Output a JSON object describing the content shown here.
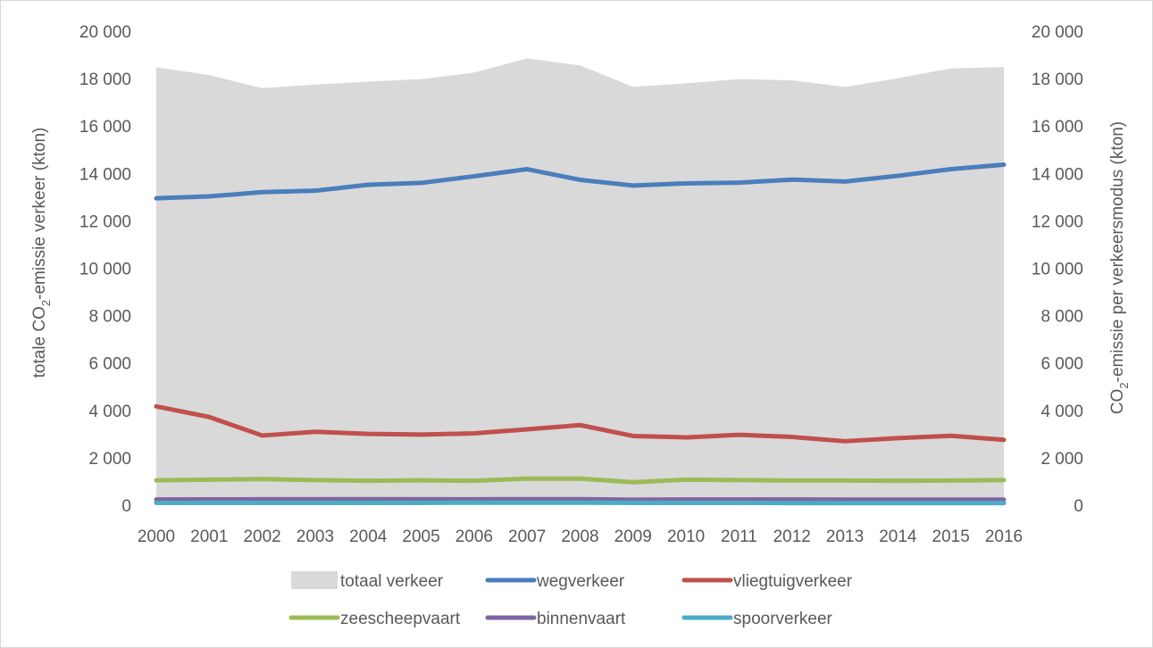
{
  "chart_data": {
    "type": "line",
    "categories": [
      "2000",
      "2001",
      "2002",
      "2003",
      "2004",
      "2005",
      "2006",
      "2007",
      "2008",
      "2009",
      "2010",
      "2011",
      "2012",
      "2013",
      "2014",
      "2015",
      "2016"
    ],
    "ylim": [
      0,
      20000
    ],
    "yticks": [
      0,
      2000,
      4000,
      6000,
      8000,
      10000,
      12000,
      14000,
      16000,
      18000,
      20000
    ],
    "ytick_labels": [
      "0",
      "2 000",
      "4 000",
      "6 000",
      "8 000",
      "10 000",
      "12 000",
      "14 000",
      "16 000",
      "18 000",
      "20 000"
    ],
    "ylabel_left": {
      "pre": "totale CO",
      "sub": "2",
      "post": "-emissie verkeer (kton)"
    },
    "ylabel_right": {
      "pre": "CO",
      "sub": "2",
      "post": "-emissie per verkeersmodus (kton)"
    },
    "grid": false,
    "legend_position": "bottom",
    "series": [
      {
        "name": "totaal verkeer",
        "kind": "area",
        "axis": "left",
        "color": "#d9d9d9",
        "values": [
          18480,
          18150,
          17600,
          17750,
          17870,
          17980,
          18260,
          18850,
          18560,
          17650,
          17800,
          17980,
          17930,
          17650,
          18020,
          18430,
          18490
        ]
      },
      {
        "name": "wegverkeer",
        "kind": "line",
        "axis": "right",
        "color": "#4a7ebb",
        "values": [
          12950,
          13030,
          13210,
          13270,
          13520,
          13600,
          13880,
          14180,
          13730,
          13490,
          13580,
          13610,
          13740,
          13660,
          13900,
          14180,
          14370
        ]
      },
      {
        "name": "vliegtuigverkeer",
        "kind": "line",
        "axis": "right",
        "color": "#c0504d",
        "values": [
          4170,
          3720,
          2940,
          3100,
          3010,
          2980,
          3030,
          3200,
          3380,
          2920,
          2860,
          2970,
          2880,
          2700,
          2830,
          2930,
          2760
        ]
      },
      {
        "name": "zeescheepvaart",
        "kind": "line",
        "axis": "right",
        "color": "#9bbb59",
        "values": [
          1050,
          1080,
          1100,
          1060,
          1030,
          1050,
          1030,
          1120,
          1120,
          970,
          1080,
          1060,
          1040,
          1040,
          1030,
          1040,
          1060
        ]
      },
      {
        "name": "binnenvaart",
        "kind": "line",
        "axis": "right",
        "color": "#8064a2",
        "values": [
          240,
          245,
          250,
          250,
          255,
          250,
          250,
          255,
          255,
          230,
          240,
          240,
          240,
          235,
          235,
          235,
          235
        ]
      },
      {
        "name": "spoorverkeer",
        "kind": "line",
        "axis": "right",
        "color": "#4bacc6",
        "values": [
          100,
          100,
          100,
          100,
          100,
          100,
          110,
          110,
          110,
          100,
          100,
          100,
          90,
          90,
          90,
          90,
          90
        ]
      }
    ]
  }
}
